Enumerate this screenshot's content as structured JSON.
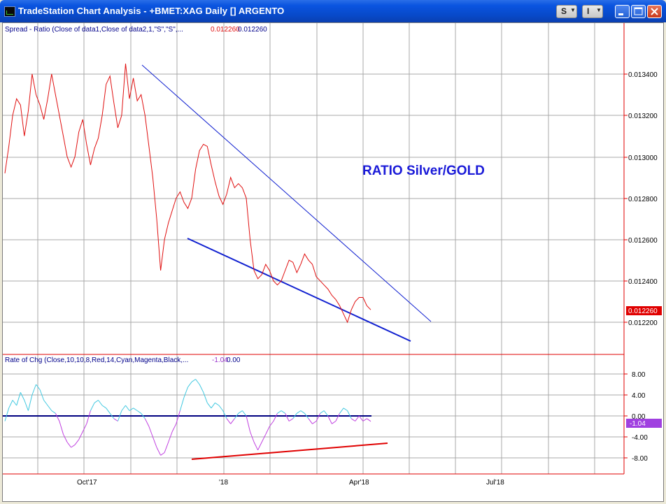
{
  "window": {
    "title": "TradeStation Chart Analysis - +BMET:XAG Daily [] ARGENTO",
    "s_button": "S",
    "i_button": "I"
  },
  "upper_panel": {
    "study_label": "Spread - Ratio (Close of data1,Close of data2,1,\"S\",\"S\",...",
    "value_1": "0.012260",
    "value_2": "0.012260",
    "annotation": "RATIO Silver/GOLD",
    "last_value_tag": "0.012260",
    "y_ticks": [
      "0.013400",
      "0.013200",
      "0.013000",
      "0.012800",
      "0.012600",
      "0.012400",
      "0.012200"
    ]
  },
  "lower_panel": {
    "study_label": "Rate of Chg (Close,10,10,8,Red,14,Cyan,Magenta,Black,...",
    "value_1": "-1.04",
    "value_2": "0.00",
    "last_value_tag": "-1.04",
    "y_ticks": [
      "8.00",
      "4.00",
      "0.00",
      "-4.00",
      "-8.00"
    ]
  },
  "x_axis": {
    "labels": [
      "Oct'17",
      "'18",
      "Apr'18",
      "Jul'18"
    ]
  },
  "colors": {
    "ratio_line": "#e01010",
    "trendline": "#1020d0",
    "annotation": "#1a1ad8",
    "roc_positive": "#40c8e0",
    "roc_negative": "#c040e0",
    "zero_line": "#000080",
    "roc_trendline": "#e00000",
    "grid": "#a9a9a9",
    "axis": "#e00000"
  },
  "chart_data": [
    {
      "type": "line",
      "ylim": [
        0.0121,
        0.0136
      ],
      "series": [
        {
          "values": [
            0.01292,
            0.01305,
            0.0132,
            0.01328,
            0.01325,
            0.0131,
            0.01322,
            0.0134,
            0.0133,
            0.01325,
            0.01318,
            0.01328,
            0.0134,
            0.0133,
            0.0132,
            0.0131,
            0.013,
            0.01295,
            0.013,
            0.01312,
            0.01318,
            0.01306,
            0.01296,
            0.01304,
            0.01309,
            0.0132,
            0.01335,
            0.01339,
            0.01326,
            0.01314,
            0.0132,
            0.01345,
            0.01328,
            0.01338,
            0.01327,
            0.0133,
            0.0132,
            0.01305,
            0.0129,
            0.0127,
            0.01245,
            0.0126,
            0.01268,
            0.01274,
            0.0128,
            0.01283,
            0.01278,
            0.01275,
            0.0128,
            0.01294,
            0.01303,
            0.01306,
            0.01305,
            0.01296,
            0.01288,
            0.01281,
            0.01277,
            0.01282,
            0.0129,
            0.01285,
            0.01287,
            0.01285,
            0.0128,
            0.0126,
            0.01245,
            0.01241,
            0.01243,
            0.01248,
            0.01245,
            0.0124,
            0.01238,
            0.0124,
            0.01245,
            0.0125,
            0.01249,
            0.01244,
            0.01248,
            0.01253,
            0.0125,
            0.01248,
            0.01242,
            0.0124,
            0.01238,
            0.01236,
            0.01233,
            0.01231,
            0.01228,
            0.01224,
            0.0122,
            0.01226,
            0.0123,
            0.01232,
            0.01232,
            0.01228,
            0.01226
          ]
        }
      ]
    },
    {
      "type": "line",
      "ylim": [
        -10,
        10
      ],
      "series": [
        {
          "values": [
            -1.0,
            1.5,
            3.0,
            2.0,
            4.5,
            3.0,
            1.0,
            4.0,
            6.0,
            5.0,
            3.0,
            2.0,
            1.0,
            0.5,
            -1.0,
            -3.5,
            -5.0,
            -6.0,
            -5.5,
            -4.5,
            -3.0,
            -1.5,
            1.0,
            2.5,
            3.0,
            2.0,
            1.5,
            0.5,
            -0.5,
            -1.0,
            1.0,
            2.0,
            1.0,
            1.5,
            1.0,
            0.5,
            -0.5,
            -2.0,
            -4.0,
            -6.0,
            -7.5,
            -7.0,
            -5.0,
            -3.0,
            -1.5,
            1.0,
            3.5,
            5.5,
            6.5,
            7.0,
            6.0,
            4.5,
            2.5,
            1.5,
            2.5,
            2.0,
            1.0,
            -0.5,
            -1.5,
            -0.5,
            0.5,
            1.0,
            0.0,
            -3.0,
            -5.0,
            -6.5,
            -5.0,
            -3.5,
            -2.0,
            -1.0,
            0.5,
            1.0,
            0.5,
            -1.0,
            -0.5,
            0.5,
            1.0,
            0.5,
            -0.5,
            -1.5,
            -1.0,
            0.5,
            1.0,
            0.0,
            -1.5,
            -1.0,
            0.5,
            1.5,
            1.0,
            -0.5,
            -1.0,
            0.0,
            -1.0,
            -0.5,
            -1.04
          ]
        }
      ]
    }
  ]
}
